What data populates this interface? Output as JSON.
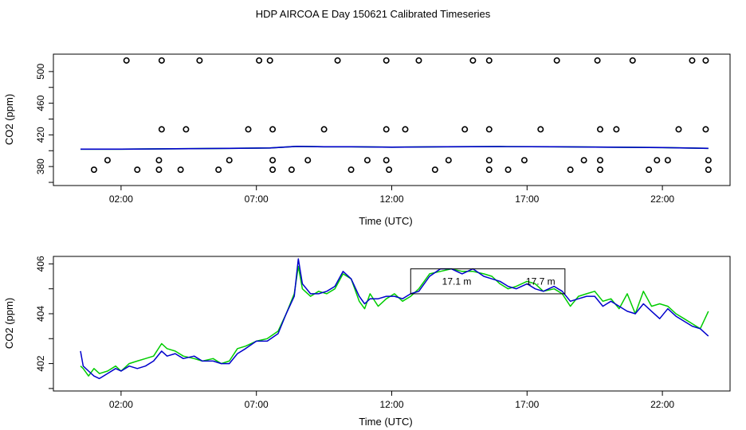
{
  "figure": {
    "title": "HDP AIRCOA E  Day 150621  Calibrated Timeseries"
  },
  "chart_data": [
    {
      "type": "scatter",
      "xlabel": "Time (UTC)",
      "ylabel": "CO2 (ppm)",
      "xlim": [
        -0.5,
        24.5
      ],
      "ylim": [
        356,
        522
      ],
      "xticks": [
        2,
        7,
        12,
        17,
        22
      ],
      "xtick_labels": [
        "02:00",
        "07:00",
        "12:00",
        "17:00",
        "22:00"
      ],
      "yticks": [
        380,
        420,
        460,
        500
      ],
      "yticks_all": [
        360,
        380,
        400,
        420,
        440,
        460,
        480,
        500
      ],
      "ytick_labels": [
        "380",
        "420",
        "460",
        "500"
      ],
      "points": {
        "x": [
          1.0,
          2.2,
          2.6,
          1.5,
          4.4,
          3.5,
          3.5,
          4.2,
          3.4,
          3.4,
          4.9,
          5.6,
          6.0,
          6.7,
          7.1,
          7.5,
          7.6,
          7.6,
          7.6,
          8.3,
          8.9,
          9.5,
          10.0,
          10.5,
          11.1,
          11.8,
          11.8,
          11.8,
          11.9,
          12.5,
          13.0,
          13.6,
          14.1,
          14.7,
          15.0,
          15.6,
          15.6,
          15.6,
          15.6,
          16.3,
          16.9,
          17.5,
          18.1,
          18.6,
          19.1,
          19.6,
          19.7,
          19.7,
          19.7,
          20.3,
          20.9,
          21.5,
          21.8,
          22.6,
          22.2,
          23.1,
          23.6,
          23.6,
          23.7,
          23.7
        ],
        "y": [
          376,
          514,
          376,
          388,
          427,
          514,
          427,
          376,
          376,
          388,
          514,
          376,
          388,
          427,
          514,
          514,
          427,
          388,
          376,
          376,
          388,
          427,
          514,
          376,
          388,
          514,
          427,
          388,
          376,
          427,
          514,
          376,
          388,
          427,
          514,
          514,
          427,
          388,
          376,
          376,
          388,
          427,
          514,
          376,
          388,
          514,
          427,
          388,
          376,
          427,
          514,
          376,
          388,
          427,
          388,
          514,
          514,
          427,
          388,
          376
        ]
      },
      "series": [
        {
          "color": "#00cc00",
          "x": [
            0.5,
            2,
            4,
            6,
            7.5,
            8.5,
            9.5,
            10.5,
            12,
            14,
            16,
            18,
            20,
            22,
            23.7
          ],
          "y": [
            402,
            402,
            402.5,
            403,
            403.5,
            405.5,
            405,
            405,
            404.5,
            405,
            405.2,
            405,
            404.5,
            404,
            403
          ]
        },
        {
          "color": "#0000cc",
          "x": [
            0.5,
            2,
            4,
            6,
            7.5,
            8.5,
            9.5,
            10.5,
            12,
            14,
            16,
            18,
            20,
            22,
            23.7
          ],
          "y": [
            402,
            402,
            402.5,
            403,
            403.5,
            405.5,
            405,
            405,
            404.5,
            405,
            405.2,
            405,
            404.5,
            404,
            403
          ]
        }
      ]
    },
    {
      "type": "line",
      "xlabel": "Time (UTC)",
      "ylabel": "CO2 (ppm)",
      "xlim": [
        -0.5,
        24.5
      ],
      "ylim": [
        400.9,
        406.3
      ],
      "xticks": [
        2,
        7,
        12,
        17,
        22
      ],
      "xtick_labels": [
        "02:00",
        "07:00",
        "12:00",
        "17:00",
        "22:00"
      ],
      "yticks": [
        402,
        404,
        406
      ],
      "yticks_all": [
        401,
        402,
        403,
        404,
        405,
        406
      ],
      "ytick_labels": [
        "402",
        "404",
        "406"
      ],
      "series": [
        {
          "color": "#00cc00",
          "x": [
            0.5,
            0.6,
            0.8,
            1.0,
            1.2,
            1.5,
            1.8,
            2.0,
            2.3,
            2.6,
            2.9,
            3.2,
            3.5,
            3.7,
            4.0,
            4.3,
            4.7,
            5.0,
            5.4,
            5.7,
            6.0,
            6.3,
            6.6,
            7.0,
            7.4,
            7.8,
            8.1,
            8.4,
            8.55,
            8.7,
            9.0,
            9.3,
            9.6,
            9.9,
            10.2,
            10.5,
            10.8,
            11.0,
            11.2,
            11.5,
            11.8,
            12.1,
            12.4,
            12.7,
            13.0,
            13.4,
            13.8,
            14.2,
            14.6,
            15.0,
            15.4,
            15.7,
            16.0,
            16.3,
            16.6,
            17.0,
            17.3,
            17.6,
            18.0,
            18.3,
            18.6,
            18.9,
            19.2,
            19.5,
            19.8,
            20.1,
            20.4,
            20.7,
            21.0,
            21.3,
            21.6,
            21.9,
            22.2,
            22.5,
            22.8,
            23.1,
            23.4,
            23.7
          ],
          "y": [
            401.9,
            401.8,
            401.5,
            401.8,
            401.6,
            401.7,
            401.9,
            401.7,
            402.0,
            402.1,
            402.2,
            402.3,
            402.8,
            402.6,
            402.5,
            402.3,
            402.2,
            402.1,
            402.2,
            402.0,
            402.1,
            402.6,
            402.7,
            402.9,
            403.0,
            403.3,
            404.0,
            404.8,
            405.9,
            405.0,
            404.7,
            404.9,
            404.8,
            405.0,
            405.6,
            405.4,
            404.5,
            404.2,
            404.8,
            404.3,
            404.6,
            404.8,
            404.5,
            404.7,
            405.0,
            405.6,
            405.7,
            405.8,
            405.7,
            405.7,
            405.6,
            405.5,
            405.2,
            405.0,
            405.1,
            405.3,
            405.2,
            404.9,
            405.0,
            404.8,
            404.3,
            404.7,
            404.8,
            404.9,
            404.5,
            404.6,
            404.2,
            404.8,
            404.0,
            404.9,
            404.3,
            404.4,
            404.3,
            404.0,
            403.8,
            403.6,
            403.4,
            404.1
          ]
        },
        {
          "color": "#0000cc",
          "x": [
            0.5,
            0.6,
            0.8,
            1.0,
            1.2,
            1.5,
            1.8,
            2.0,
            2.3,
            2.6,
            2.9,
            3.2,
            3.5,
            3.7,
            4.0,
            4.3,
            4.7,
            5.0,
            5.4,
            5.7,
            6.0,
            6.3,
            6.6,
            7.0,
            7.4,
            7.8,
            8.1,
            8.4,
            8.55,
            8.7,
            9.0,
            9.3,
            9.6,
            9.9,
            10.2,
            10.5,
            10.8,
            11.0,
            11.2,
            11.5,
            11.8,
            12.1,
            12.4,
            12.7,
            13.0,
            13.4,
            13.8,
            14.2,
            14.6,
            15.0,
            15.4,
            15.7,
            16.0,
            16.3,
            16.6,
            17.0,
            17.3,
            17.6,
            18.0,
            18.3,
            18.6,
            18.9,
            19.2,
            19.5,
            19.8,
            20.1,
            20.4,
            20.7,
            21.0,
            21.3,
            21.6,
            21.9,
            22.2,
            22.5,
            22.8,
            23.1,
            23.4,
            23.7
          ],
          "y": [
            402.5,
            401.9,
            401.7,
            401.5,
            401.4,
            401.6,
            401.8,
            401.7,
            401.9,
            401.8,
            401.9,
            402.1,
            402.5,
            402.3,
            402.4,
            402.2,
            402.3,
            402.1,
            402.1,
            402.0,
            402.0,
            402.4,
            402.6,
            402.9,
            402.9,
            403.2,
            404.0,
            404.7,
            406.2,
            405.2,
            404.8,
            404.8,
            404.9,
            405.1,
            405.7,
            405.4,
            404.7,
            404.4,
            404.6,
            404.6,
            404.7,
            404.7,
            404.6,
            404.8,
            404.9,
            405.5,
            405.8,
            405.8,
            405.6,
            405.8,
            405.5,
            405.4,
            405.3,
            405.1,
            405.0,
            405.2,
            405.0,
            404.9,
            405.1,
            404.9,
            404.5,
            404.6,
            404.7,
            404.7,
            404.3,
            404.5,
            404.3,
            404.1,
            404.0,
            404.4,
            404.1,
            403.8,
            404.2,
            403.9,
            403.7,
            403.5,
            403.4,
            403.1
          ]
        }
      ],
      "annotations": [
        {
          "label": "17.1 m",
          "x": 14.4,
          "y": 405.3
        },
        {
          "label": "17.7 m",
          "x": 17.5,
          "y": 405.3
        }
      ],
      "annotation_box": {
        "x": [
          12.7,
          18.4
        ],
        "y": [
          404.8,
          405.8
        ]
      }
    }
  ]
}
